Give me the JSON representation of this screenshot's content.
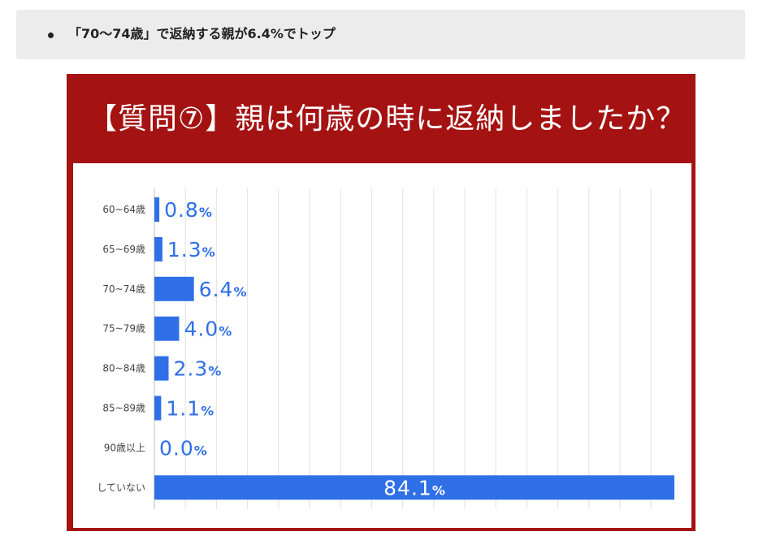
{
  "note": {
    "text": "「70〜74歳」で返納する親が6.4%でトップ"
  },
  "chart_data": {
    "type": "bar",
    "orientation": "horizontal",
    "title": "【質問⑦】親は何歳の時に返納しましたか？",
    "categories": [
      "60~64歳",
      "65~69歳",
      "70~74歳",
      "75~79歳",
      "80~84歳",
      "85~89歳",
      "90歳以上",
      "していない"
    ],
    "values": [
      0.8,
      1.3,
      6.4,
      4.0,
      2.3,
      1.1,
      0.0,
      84.1
    ],
    "value_labels": [
      "0.8",
      "1.3",
      "6.4",
      "4.0",
      "2.3",
      "1.1",
      "0.0",
      "84.1"
    ],
    "unit": "%",
    "xlim": [
      0,
      84.1
    ],
    "grid": true,
    "bar_color": "#2f6fe8",
    "title_bg": "#a51212",
    "label_color": "#2f6fe8"
  }
}
